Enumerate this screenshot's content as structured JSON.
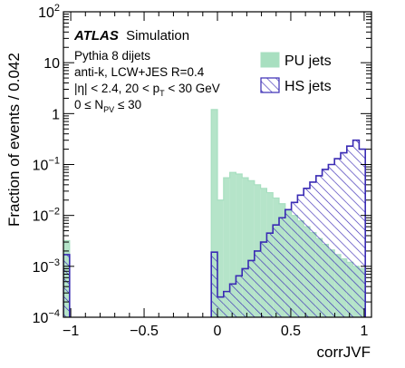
{
  "chart_data": {
    "type": "histogram",
    "xlabel": "corrJVF",
    "ylabel": "Fraction of events / 0.042",
    "xlim": [
      -1.05,
      1.05
    ],
    "ylim": [
      0.0001,
      100
    ],
    "ylog": true,
    "x_ticks": [
      -1,
      -0.5,
      0,
      0.5,
      1
    ],
    "x_tick_labels": [
      "−1",
      "−0.5",
      "0",
      "0.5",
      "1"
    ],
    "y_ticks": [
      0.0001,
      0.001,
      0.01,
      0.1,
      1,
      10,
      100
    ],
    "y_tick_labels": [
      {
        "base": "10",
        "exp": "−4"
      },
      {
        "base": "10",
        "exp": "−3"
      },
      {
        "base": "10",
        "exp": "−2"
      },
      {
        "base": "10",
        "exp": "−1"
      },
      {
        "base": "1",
        "exp": ""
      },
      {
        "base": "10",
        "exp": ""
      },
      {
        "base": "10",
        "exp": "2"
      }
    ],
    "annotations": {
      "experiment": "ATLAS",
      "experiment_suffix": "Simulation",
      "line1": "Pythia 8 dijets",
      "line2": "anti-k, LCW+JES R=0.4",
      "line3_a": "|η| < 2.4, 20 < p",
      "line3_sub": "T",
      "line3_b": " < 30 GeV",
      "line4_a": "0 ≤ N",
      "line4_sub": "PV",
      "line4_b": " ≤ 30"
    },
    "legend_position": "top-right",
    "series": [
      {
        "name": "PU jets",
        "style": "filled",
        "color": "#a8dfc0",
        "edge_color": "#a8dfc0",
        "bins": [
          {
            "lo": -1.05,
            "hi": -1.008,
            "y": 0.0032
          },
          {
            "lo": -0.042,
            "hi": 0.0,
            "y": 1.2
          },
          {
            "lo": 0.0,
            "hi": 0.042,
            "y": 0.02
          },
          {
            "lo": 0.042,
            "hi": 0.084,
            "y": 0.055
          },
          {
            "lo": 0.084,
            "hi": 0.126,
            "y": 0.07
          },
          {
            "lo": 0.126,
            "hi": 0.168,
            "y": 0.065
          },
          {
            "lo": 0.168,
            "hi": 0.21,
            "y": 0.055
          },
          {
            "lo": 0.21,
            "hi": 0.252,
            "y": 0.048
          },
          {
            "lo": 0.252,
            "hi": 0.294,
            "y": 0.04
          },
          {
            "lo": 0.294,
            "hi": 0.336,
            "y": 0.034
          },
          {
            "lo": 0.336,
            "hi": 0.378,
            "y": 0.028
          },
          {
            "lo": 0.378,
            "hi": 0.42,
            "y": 0.022
          },
          {
            "lo": 0.42,
            "hi": 0.462,
            "y": 0.017
          },
          {
            "lo": 0.462,
            "hi": 0.504,
            "y": 0.013
          },
          {
            "lo": 0.504,
            "hi": 0.546,
            "y": 0.01
          },
          {
            "lo": 0.546,
            "hi": 0.588,
            "y": 0.0078
          },
          {
            "lo": 0.588,
            "hi": 0.63,
            "y": 0.006
          },
          {
            "lo": 0.63,
            "hi": 0.672,
            "y": 0.0046
          },
          {
            "lo": 0.672,
            "hi": 0.714,
            "y": 0.0035
          },
          {
            "lo": 0.714,
            "hi": 0.756,
            "y": 0.0027
          },
          {
            "lo": 0.756,
            "hi": 0.798,
            "y": 0.0021
          },
          {
            "lo": 0.798,
            "hi": 0.84,
            "y": 0.0017
          },
          {
            "lo": 0.84,
            "hi": 0.882,
            "y": 0.0014
          },
          {
            "lo": 0.882,
            "hi": 0.924,
            "y": 0.0012
          },
          {
            "lo": 0.924,
            "hi": 0.966,
            "y": 0.001
          },
          {
            "lo": 0.966,
            "hi": 1.008,
            "y": 0.0009
          }
        ]
      },
      {
        "name": "HS jets",
        "style": "hatched",
        "color": "#3a2bb4",
        "edge_color": "#3a2bb4",
        "bins": [
          {
            "lo": -1.05,
            "hi": -1.008,
            "y": 0.0017
          },
          {
            "lo": -0.042,
            "hi": 0.0,
            "y": 0.0019
          },
          {
            "lo": 0.0,
            "hi": 0.042,
            "y": 0.00025
          },
          {
            "lo": 0.042,
            "hi": 0.084,
            "y": 0.00032
          },
          {
            "lo": 0.084,
            "hi": 0.126,
            "y": 0.00045
          },
          {
            "lo": 0.126,
            "hi": 0.168,
            "y": 0.00065
          },
          {
            "lo": 0.168,
            "hi": 0.21,
            "y": 0.0009
          },
          {
            "lo": 0.21,
            "hi": 0.252,
            "y": 0.0013
          },
          {
            "lo": 0.252,
            "hi": 0.294,
            "y": 0.002
          },
          {
            "lo": 0.294,
            "hi": 0.336,
            "y": 0.003
          },
          {
            "lo": 0.336,
            "hi": 0.378,
            "y": 0.0045
          },
          {
            "lo": 0.378,
            "hi": 0.42,
            "y": 0.0065
          },
          {
            "lo": 0.42,
            "hi": 0.462,
            "y": 0.009
          },
          {
            "lo": 0.462,
            "hi": 0.504,
            "y": 0.013
          },
          {
            "lo": 0.504,
            "hi": 0.546,
            "y": 0.018
          },
          {
            "lo": 0.546,
            "hi": 0.588,
            "y": 0.025
          },
          {
            "lo": 0.588,
            "hi": 0.63,
            "y": 0.034
          },
          {
            "lo": 0.63,
            "hi": 0.672,
            "y": 0.045
          },
          {
            "lo": 0.672,
            "hi": 0.714,
            "y": 0.06
          },
          {
            "lo": 0.714,
            "hi": 0.756,
            "y": 0.08
          },
          {
            "lo": 0.756,
            "hi": 0.798,
            "y": 0.1
          },
          {
            "lo": 0.798,
            "hi": 0.84,
            "y": 0.13
          },
          {
            "lo": 0.84,
            "hi": 0.882,
            "y": 0.17
          },
          {
            "lo": 0.882,
            "hi": 0.924,
            "y": 0.23
          },
          {
            "lo": 0.924,
            "hi": 0.966,
            "y": 0.3
          },
          {
            "lo": 0.966,
            "hi": 1.008,
            "y": 0.2
          }
        ]
      }
    ]
  }
}
